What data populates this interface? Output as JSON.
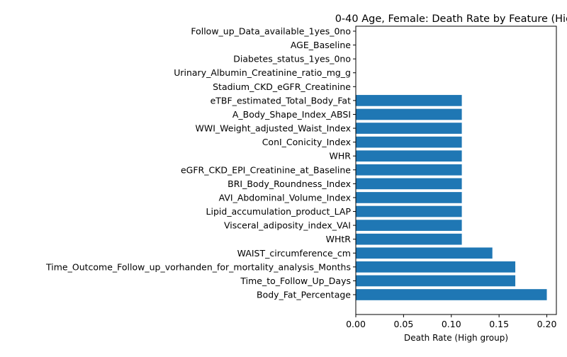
{
  "chart_data": {
    "type": "bar",
    "orientation": "horizontal",
    "title": "0-40 Age, Female: Death Rate by Feature (Hig",
    "xlabel": "Death Rate (High group)",
    "ylabel": "",
    "xlim": [
      0,
      0.21
    ],
    "xticks": [
      0.0,
      0.05,
      0.1,
      0.15,
      0.2
    ],
    "xtick_labels": [
      "0.00",
      "0.05",
      "0.10",
      "0.15",
      "0.20"
    ],
    "grid": false,
    "bar_color": "#1f77b4",
    "categories": [
      "Follow_up_Data_available_1yes_0no",
      "AGE_Baseline",
      "Diabetes_status_1yes_0no",
      "Urinary_Albumin_Creatinine_ratio_mg_g",
      "Stadium_CKD_eGFR_Creatinine",
      "eTBF_estimated_Total_Body_Fat",
      "A_Body_Shape_Index_ABSI",
      "WWI_Weight_adjusted_Waist_Index",
      "ConI_Conicity_Index",
      "WHR",
      "eGFR_CKD_EPI_Creatinine_at_Baseline",
      "BRI_Body_Roundness_Index",
      "AVI_Abdominal_Volume_Index",
      "Lipid_accumulation_product_LAP",
      "Visceral_adiposity_index_VAI",
      "WHtR",
      "WAIST_circumference_cm",
      "Time_Outcome_Follow_up_vorhanden_for_mortality_analysis_Months",
      "Time_to_Follow_Up_Days",
      "Body_Fat_Percentage"
    ],
    "values": [
      0,
      0,
      0,
      0,
      0,
      0.111,
      0.111,
      0.111,
      0.111,
      0.111,
      0.111,
      0.111,
      0.111,
      0.111,
      0.111,
      0.111,
      0.143,
      0.167,
      0.167,
      0.2
    ]
  }
}
